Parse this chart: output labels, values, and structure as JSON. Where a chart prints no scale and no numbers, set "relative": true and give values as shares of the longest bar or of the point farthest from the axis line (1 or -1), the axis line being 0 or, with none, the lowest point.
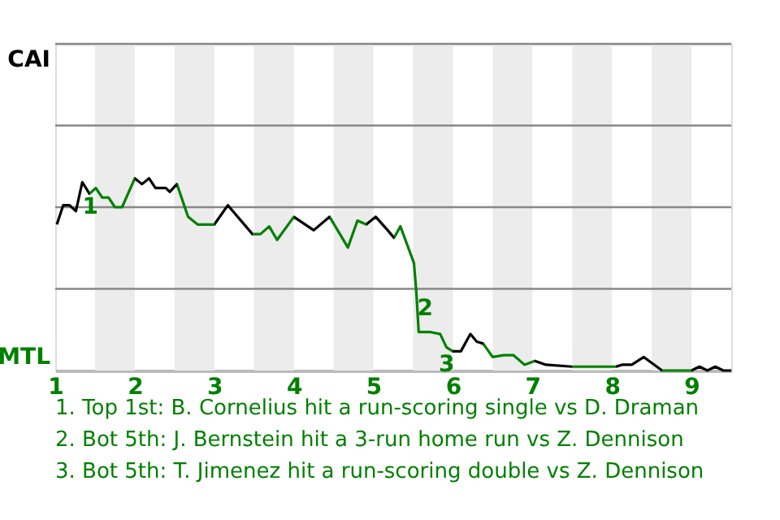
{
  "chart_data": {
    "type": "line",
    "x": [
      1.02,
      1.1,
      1.18,
      1.26,
      1.34,
      1.43,
      1.51,
      1.59,
      1.67,
      1.75,
      1.84,
      2.0,
      2.09,
      2.18,
      2.26,
      2.39,
      2.44,
      2.53,
      2.67,
      2.79,
      3.0,
      3.17,
      3.48,
      3.58,
      3.69,
      3.79,
      4.0,
      4.25,
      4.45,
      4.68,
      4.8,
      4.91,
      5.03,
      5.18,
      5.26,
      5.34,
      5.51,
      5.54,
      5.57,
      5.72,
      5.84,
      5.92,
      6.0,
      6.1,
      6.22,
      6.3,
      6.38,
      6.5,
      6.64,
      6.76,
      6.9,
      7.03,
      7.17,
      7.5,
      7.73,
      8.05,
      8.13,
      8.25,
      8.4,
      8.63,
      9.0,
      9.1,
      9.2,
      9.3,
      9.4,
      9.5
    ],
    "series": [
      {
        "values": [
          0.76,
          0.86,
          0.86,
          0.83,
          0.98,
          0.92,
          0.95,
          0.9,
          0.9,
          0.85,
          0.85,
          1,
          0.97,
          1,
          0.95,
          0.95,
          0.93,
          0.97,
          0.8,
          0.76,
          0.76,
          0.86,
          0.71,
          0.71,
          0.75,
          0.68,
          0.8,
          0.73,
          0.8,
          0.64,
          0.78,
          0.76,
          0.8,
          0.73,
          0.69,
          0.75,
          0.56,
          0.41,
          0.2,
          0.2,
          0.19,
          0.12,
          0.1,
          0.1,
          0.19,
          0.15,
          0.14,
          0.07,
          0.08,
          0.08,
          0.03,
          0.05,
          0.03,
          0.02,
          0.02,
          0.02,
          0.03,
          0.03,
          0.07,
          0,
          0,
          0.02,
          0,
          0.02,
          0,
          0
        ],
        "colors": [
          "#000000",
          "#000000",
          "#000000",
          "#000000",
          "#000000",
          "#008000",
          "#008000",
          "#008000",
          "#008000",
          "#008000",
          "#008000",
          "#000000",
          "#000000",
          "#000000",
          "#000000",
          "#000000",
          "#000000",
          "#008000",
          "#008000",
          "#008000",
          "#000000",
          "#000000",
          "#008000",
          "#008000",
          "#008000",
          "#008000",
          "#000000",
          "#000000",
          "#008000",
          "#008000",
          "#008000",
          "#000000",
          "#000000",
          "#000000",
          "#008000",
          "#008000",
          "#008000",
          "#008000",
          "#008000",
          "#008000",
          "#008000",
          "#008000",
          "#000000",
          "#000000",
          "#000000",
          "#000000",
          "#008000",
          "#008000",
          "#008000",
          "#008000",
          "#008000",
          "#000000",
          "#000000",
          "#008000",
          "#008000",
          "#000000",
          "#000000",
          "#000000",
          "#000000",
          "#008000",
          "#000000",
          "#000000",
          "#000000",
          "#000000",
          "#000000",
          "#000000"
        ]
      }
    ],
    "relative": true,
    "xlim": [
      1,
      9.5
    ],
    "xticks": [
      1,
      2,
      3,
      4,
      5,
      6,
      7,
      8,
      9
    ],
    "ref_lines": [
      {
        "axis": "y",
        "value": 0.425,
        "color": "#888888"
      },
      {
        "axis": "y",
        "value": 0.85,
        "color": "#888888"
      },
      {
        "axis": "y",
        "value": 1.275,
        "color": "#888888"
      },
      {
        "axis": "y",
        "value": 1.7,
        "color": "#888888"
      }
    ],
    "bands": [
      {
        "axis": "x",
        "from": 1.5,
        "to": 2,
        "color": "#ececec"
      },
      {
        "axis": "x",
        "from": 2.5,
        "to": 3,
        "color": "#ececec"
      },
      {
        "axis": "x",
        "from": 3.5,
        "to": 4,
        "color": "#ececec"
      },
      {
        "axis": "x",
        "from": 4.5,
        "to": 5,
        "color": "#ececec"
      },
      {
        "axis": "x",
        "from": 5.5,
        "to": 6,
        "color": "#ececec"
      },
      {
        "axis": "x",
        "from": 6.5,
        "to": 7,
        "color": "#ececec"
      },
      {
        "axis": "x",
        "from": 7.5,
        "to": 8,
        "color": "#ececec"
      },
      {
        "axis": "x",
        "from": 8.5,
        "to": 9,
        "color": "#ececec"
      }
    ],
    "annotations": [
      "CAI",
      "MTL",
      {
        "text": "1",
        "x": 1.36,
        "y": 0.85
      },
      {
        "text": "2",
        "x": 5.57,
        "y": 0.32
      },
      {
        "text": "3",
        "x": 5.84,
        "y": 0.03
      },
      "1. Top 1st: B. Cornelius hit a run-scoring single vs D. Draman",
      "2. Bot 5th: J. Bernstein hit a 3-run home run vs Z. Dennison",
      "3. Bot 5th: T. Jimenez hit a run-scoring double vs Z. Dennison"
    ],
    "marker": "none",
    "line_style": "solid"
  }
}
